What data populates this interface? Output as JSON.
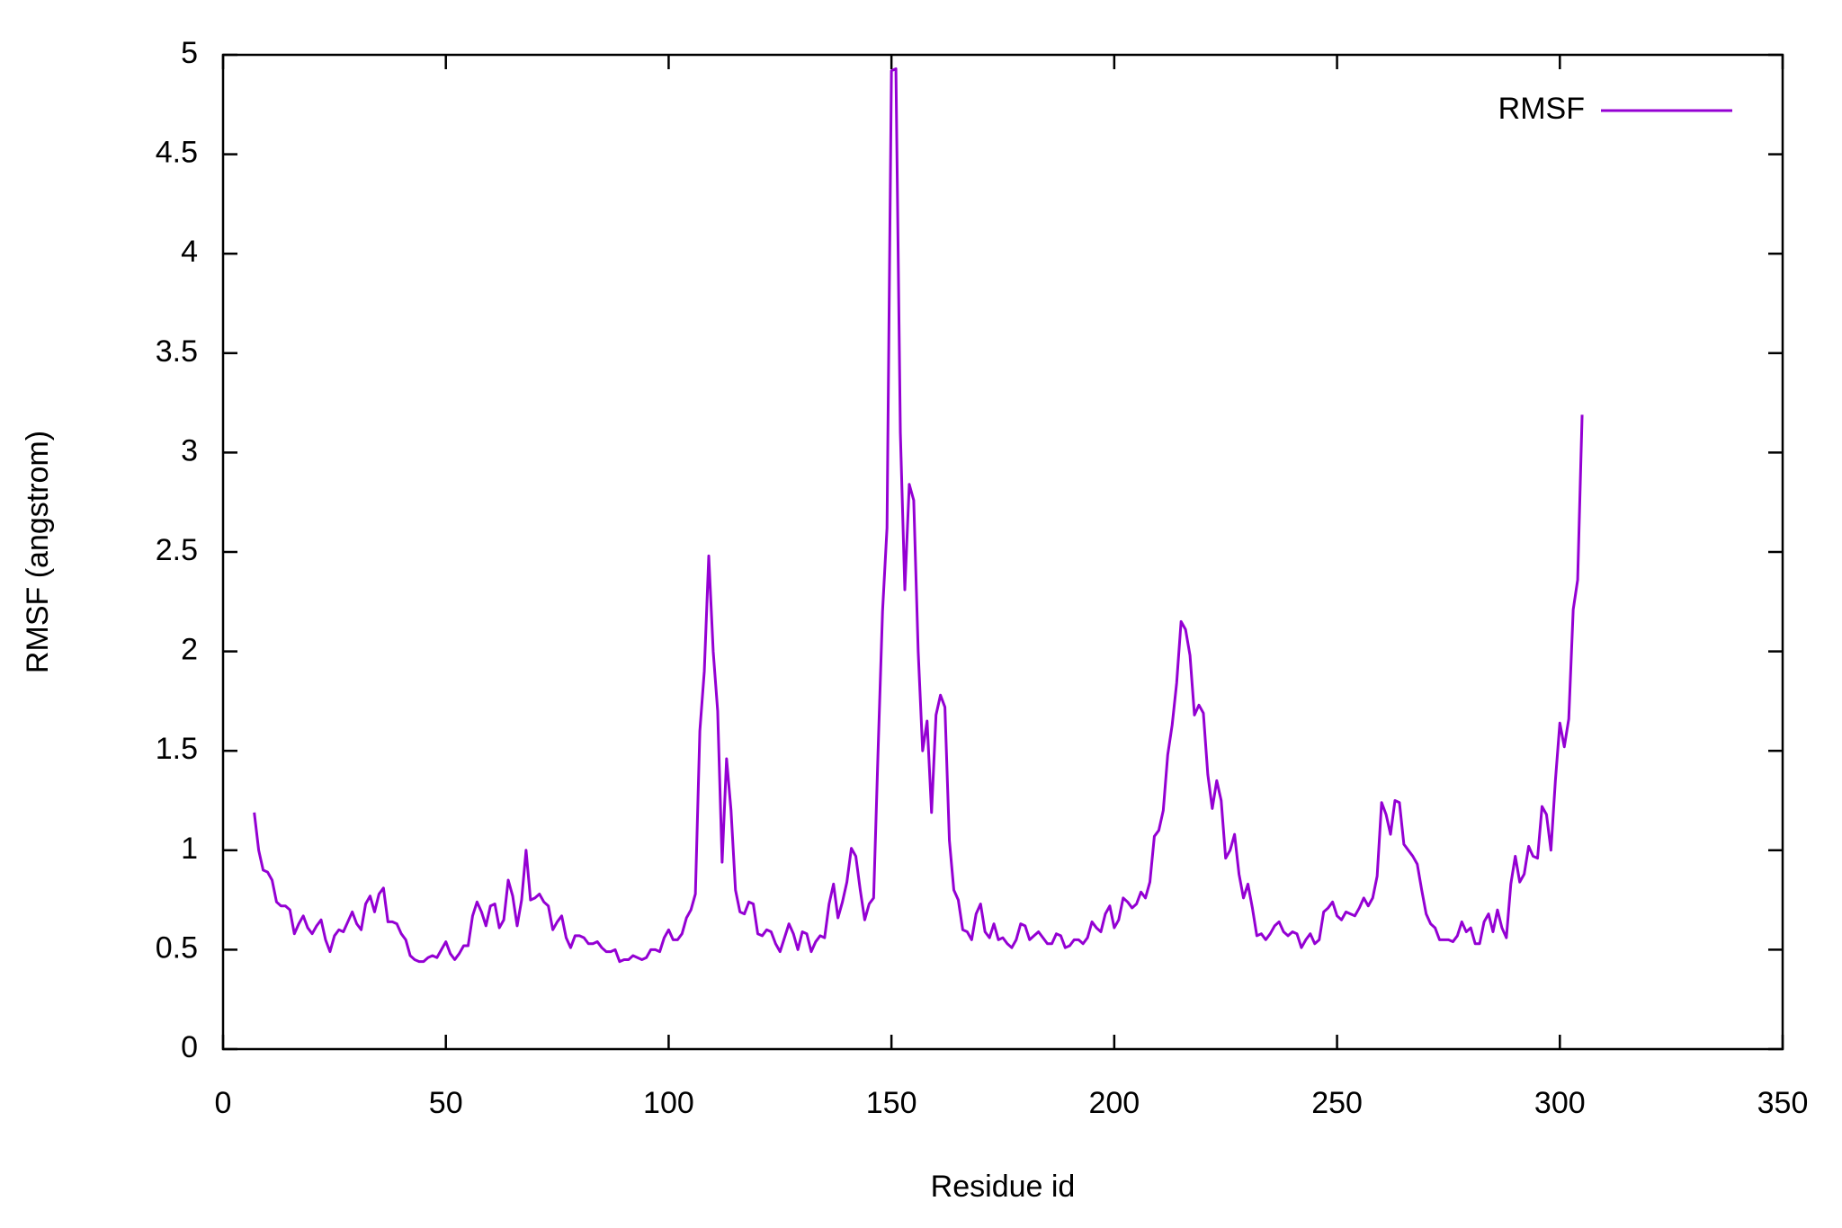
{
  "chart_data": {
    "type": "line",
    "xlabel": "Residue id",
    "ylabel": "RMSF (angstrom)",
    "xlim": [
      0,
      350
    ],
    "xticks": [
      0,
      50,
      100,
      150,
      200,
      250,
      300,
      350
    ],
    "ylim": [
      0,
      5
    ],
    "yticks": [
      0,
      0.5,
      1,
      1.5,
      2,
      2.5,
      3,
      3.5,
      4,
      4.5,
      5
    ],
    "legend": "upper right",
    "x": [
      7,
      8,
      9,
      10,
      11,
      12,
      13,
      14,
      15,
      16,
      17,
      18,
      19,
      20,
      21,
      22,
      23,
      24,
      25,
      26,
      27,
      28,
      29,
      30,
      31,
      32,
      33,
      34,
      35,
      36,
      37,
      38,
      39,
      40,
      41,
      42,
      43,
      44,
      45,
      46,
      47,
      48,
      49,
      50,
      51,
      52,
      53,
      54,
      55,
      56,
      57,
      58,
      59,
      60,
      61,
      62,
      63,
      64,
      65,
      66,
      67,
      68,
      69,
      70,
      71,
      72,
      73,
      74,
      75,
      76,
      77,
      78,
      79,
      80,
      81,
      82,
      83,
      84,
      85,
      86,
      87,
      88,
      89,
      90,
      91,
      92,
      93,
      94,
      95,
      96,
      97,
      98,
      99,
      100,
      101,
      102,
      103,
      104,
      105,
      106,
      107,
      108,
      109,
      110,
      111,
      112,
      113,
      114,
      115,
      116,
      117,
      118,
      119,
      120,
      121,
      122,
      123,
      124,
      125,
      126,
      127,
      128,
      129,
      130,
      131,
      132,
      133,
      134,
      135,
      136,
      137,
      138,
      139,
      140,
      141,
      142,
      143,
      144,
      145,
      146,
      147,
      148,
      149,
      150,
      151,
      152,
      153,
      154,
      155,
      156,
      157,
      158,
      159,
      160,
      161,
      162,
      163,
      164,
      165,
      166,
      167,
      168,
      169,
      170,
      171,
      172,
      173,
      174,
      175,
      176,
      177,
      178,
      179,
      180,
      181,
      182,
      183,
      184,
      185,
      186,
      187,
      188,
      189,
      190,
      191,
      192,
      193,
      194,
      195,
      196,
      197,
      198,
      199,
      200,
      201,
      202,
      203,
      204,
      205,
      206,
      207,
      208,
      209,
      210,
      211,
      212,
      213,
      214,
      215,
      216,
      217,
      218,
      219,
      220,
      221,
      222,
      223,
      224,
      225,
      226,
      227,
      228,
      229,
      230,
      231,
      232,
      233,
      234,
      235,
      236,
      237,
      238,
      239,
      240,
      241,
      242,
      243,
      244,
      245,
      246,
      247,
      248,
      249,
      250,
      251,
      252,
      253,
      254,
      255,
      256,
      257,
      258,
      259,
      260,
      261,
      262,
      263,
      264,
      265,
      266,
      267,
      268,
      269,
      270,
      271,
      272,
      273,
      274,
      275,
      276,
      277,
      278,
      279,
      280,
      281,
      282,
      283,
      284,
      285,
      286,
      287,
      288,
      289,
      290,
      291,
      292,
      293,
      294,
      295,
      296,
      297,
      298,
      299,
      300,
      301,
      302,
      303,
      304,
      305
    ],
    "series": [
      {
        "name": "RMSF",
        "color": "#9400d3",
        "values": [
          1.19,
          1.0,
          0.9,
          0.89,
          0.85,
          0.74,
          0.72,
          0.72,
          0.7,
          0.58,
          0.63,
          0.67,
          0.61,
          0.58,
          0.62,
          0.65,
          0.55,
          0.49,
          0.57,
          0.6,
          0.59,
          0.64,
          0.69,
          0.63,
          0.6,
          0.73,
          0.77,
          0.69,
          0.78,
          0.81,
          0.64,
          0.64,
          0.63,
          0.58,
          0.55,
          0.47,
          0.45,
          0.44,
          0.44,
          0.46,
          0.47,
          0.46,
          0.5,
          0.54,
          0.48,
          0.45,
          0.48,
          0.52,
          0.52,
          0.67,
          0.74,
          0.69,
          0.62,
          0.72,
          0.73,
          0.61,
          0.65,
          0.85,
          0.77,
          0.62,
          0.75,
          1.0,
          0.75,
          0.76,
          0.78,
          0.74,
          0.72,
          0.6,
          0.64,
          0.67,
          0.56,
          0.51,
          0.57,
          0.57,
          0.56,
          0.53,
          0.53,
          0.54,
          0.51,
          0.49,
          0.49,
          0.5,
          0.44,
          0.45,
          0.45,
          0.47,
          0.46,
          0.45,
          0.46,
          0.5,
          0.5,
          0.49,
          0.56,
          0.6,
          0.55,
          0.55,
          0.58,
          0.66,
          0.7,
          0.78,
          1.6,
          1.9,
          2.48,
          2.0,
          1.7,
          0.94,
          1.46,
          1.2,
          0.8,
          0.69,
          0.68,
          0.74,
          0.73,
          0.58,
          0.57,
          0.6,
          0.59,
          0.53,
          0.49,
          0.56,
          0.63,
          0.58,
          0.5,
          0.59,
          0.58,
          0.49,
          0.54,
          0.57,
          0.56,
          0.73,
          0.83,
          0.66,
          0.74,
          0.84,
          1.01,
          0.97,
          0.8,
          0.65,
          0.73,
          0.76,
          1.5,
          2.2,
          2.62,
          4.92,
          4.93,
          3.1,
          2.31,
          2.84,
          2.76,
          2.0,
          1.5,
          1.65,
          1.19,
          1.68,
          1.78,
          1.72,
          1.05,
          0.8,
          0.75,
          0.6,
          0.59,
          0.55,
          0.68,
          0.73,
          0.59,
          0.56,
          0.63,
          0.55,
          0.56,
          0.53,
          0.51,
          0.55,
          0.63,
          0.62,
          0.55,
          0.57,
          0.59,
          0.56,
          0.53,
          0.53,
          0.58,
          0.57,
          0.51,
          0.52,
          0.55,
          0.55,
          0.53,
          0.56,
          0.64,
          0.61,
          0.59,
          0.68,
          0.72,
          0.61,
          0.65,
          0.76,
          0.74,
          0.71,
          0.73,
          0.79,
          0.76,
          0.84,
          1.07,
          1.1,
          1.2,
          1.48,
          1.63,
          1.84,
          2.15,
          2.11,
          1.98,
          1.68,
          1.73,
          1.69,
          1.38,
          1.21,
          1.35,
          1.25,
          0.96,
          1.0,
          1.08,
          0.88,
          0.76,
          0.83,
          0.71,
          0.57,
          0.58,
          0.55,
          0.58,
          0.62,
          0.64,
          0.59,
          0.57,
          0.59,
          0.58,
          0.51,
          0.55,
          0.58,
          0.53,
          0.55,
          0.69,
          0.71,
          0.74,
          0.67,
          0.65,
          0.69,
          0.68,
          0.67,
          0.71,
          0.76,
          0.72,
          0.76,
          0.87,
          1.24,
          1.18,
          1.08,
          1.25,
          1.24,
          1.03,
          1.0,
          0.97,
          0.93,
          0.8,
          0.68,
          0.63,
          0.61,
          0.55,
          0.55,
          0.55,
          0.54,
          0.57,
          0.64,
          0.59,
          0.61,
          0.53,
          0.53,
          0.64,
          0.68,
          0.59,
          0.7,
          0.61,
          0.56,
          0.83,
          0.97,
          0.84,
          0.88,
          1.02,
          0.97,
          0.96,
          1.22,
          1.18,
          1.0,
          1.35,
          1.64,
          1.52,
          1.66,
          2.21,
          2.36,
          3.19
        ]
      }
    ]
  }
}
